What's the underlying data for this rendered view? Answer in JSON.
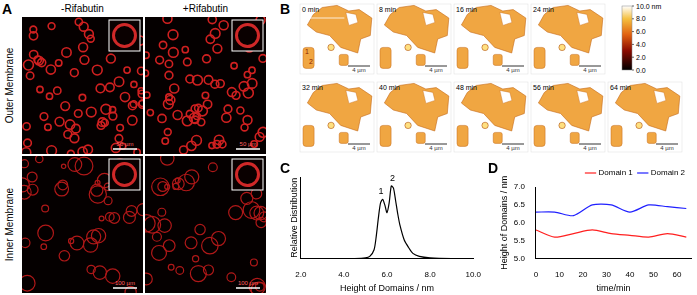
{
  "figure": {
    "A": {
      "label": "A",
      "columns": [
        "-Rifabutin",
        "+Rifabutin"
      ],
      "rows": [
        "Outer Membrane",
        "Inner Membrane"
      ],
      "scale_bars": [
        [
          "50 µm",
          "50 µm"
        ],
        [
          "100 µm",
          "100 µm"
        ]
      ]
    },
    "B": {
      "label": "B",
      "frames": [
        "0 min",
        "8 min",
        "16 min",
        "24 min",
        "32 min",
        "40 min",
        "48 min",
        "56 min",
        "64 min"
      ],
      "scale_bar": "4 µm",
      "domain_marks": [
        "1",
        "2"
      ],
      "colorbar": {
        "range": [
          0,
          10
        ],
        "ticks": [
          {
            "value": 10,
            "label": "10.0 nm"
          },
          {
            "value": 8,
            "label": "8.0"
          },
          {
            "value": 6,
            "label": "6.0"
          },
          {
            "value": 4,
            "label": "4.0"
          },
          {
            "value": 2,
            "label": "2.0"
          },
          {
            "value": 0,
            "label": "0.0"
          }
        ]
      }
    }
  },
  "chart_data": [
    {
      "panel_label": "C",
      "type": "line",
      "x_label": "Height of Domains / nm",
      "y_label": "Relative Distribution",
      "x": [
        2,
        3,
        4,
        4.5,
        5,
        5.2,
        5.4,
        5.5,
        5.6,
        5.7,
        5.8,
        5.9,
        6.0,
        6.1,
        6.2,
        6.3,
        6.4,
        6.5,
        6.6,
        6.8,
        7.0,
        7.2,
        7.5,
        8,
        9,
        10
      ],
      "values": [
        0,
        0,
        0,
        0,
        0.01,
        0.03,
        0.12,
        0.3,
        0.55,
        0.75,
        0.8,
        0.72,
        0.62,
        0.75,
        0.98,
        0.95,
        0.78,
        0.6,
        0.45,
        0.25,
        0.15,
        0.07,
        0.03,
        0.01,
        0,
        0
      ],
      "color": "#000000",
      "xlim": [
        2,
        10
      ],
      "xticks": [
        {
          "value": 2,
          "label": "2.0"
        },
        {
          "value": 4,
          "label": "4.0"
        },
        {
          "value": 6,
          "label": "6.0"
        },
        {
          "value": 8,
          "label": "8.0"
        },
        {
          "value": 10,
          "label": "10.0"
        }
      ],
      "ylim": [
        0,
        1.1
      ],
      "tick_labels": "x",
      "grid": false,
      "annotations": [
        {
          "text": "1",
          "x": 5.72,
          "y": 0.84
        },
        {
          "text": "2",
          "x": 6.25,
          "y": 1.02
        }
      ]
    },
    {
      "panel_label": "D",
      "type": "line",
      "x_label": "time/min",
      "y_label": "Height of Domains / nm",
      "x": [
        0,
        8,
        16,
        24,
        32,
        40,
        48,
        56,
        64
      ],
      "series": [
        {
          "name": "Domain 1",
          "color": "#ff2020",
          "values": [
            5.8,
            5.6,
            5.7,
            5.8,
            5.7,
            5.65,
            5.6,
            5.7,
            5.6
          ]
        },
        {
          "name": "Domain 2",
          "color": "#2020ff",
          "values": [
            6.3,
            6.3,
            6.2,
            6.5,
            6.5,
            6.3,
            6.5,
            6.45,
            6.4
          ]
        }
      ],
      "xlim": [
        0,
        66
      ],
      "xticks": [
        0,
        10,
        20,
        30,
        40,
        50,
        60
      ],
      "ylim": [
        5,
        7
      ],
      "yticks": [
        {
          "value": 5,
          "label": "5.0"
        },
        {
          "value": 5.5,
          "label": "5.5"
        },
        {
          "value": 6,
          "label": "6.0"
        },
        {
          "value": 6.5,
          "label": "6.5"
        },
        {
          "value": 7,
          "label": "7.0"
        }
      ],
      "legend": "upper right",
      "grid": false
    }
  ]
}
